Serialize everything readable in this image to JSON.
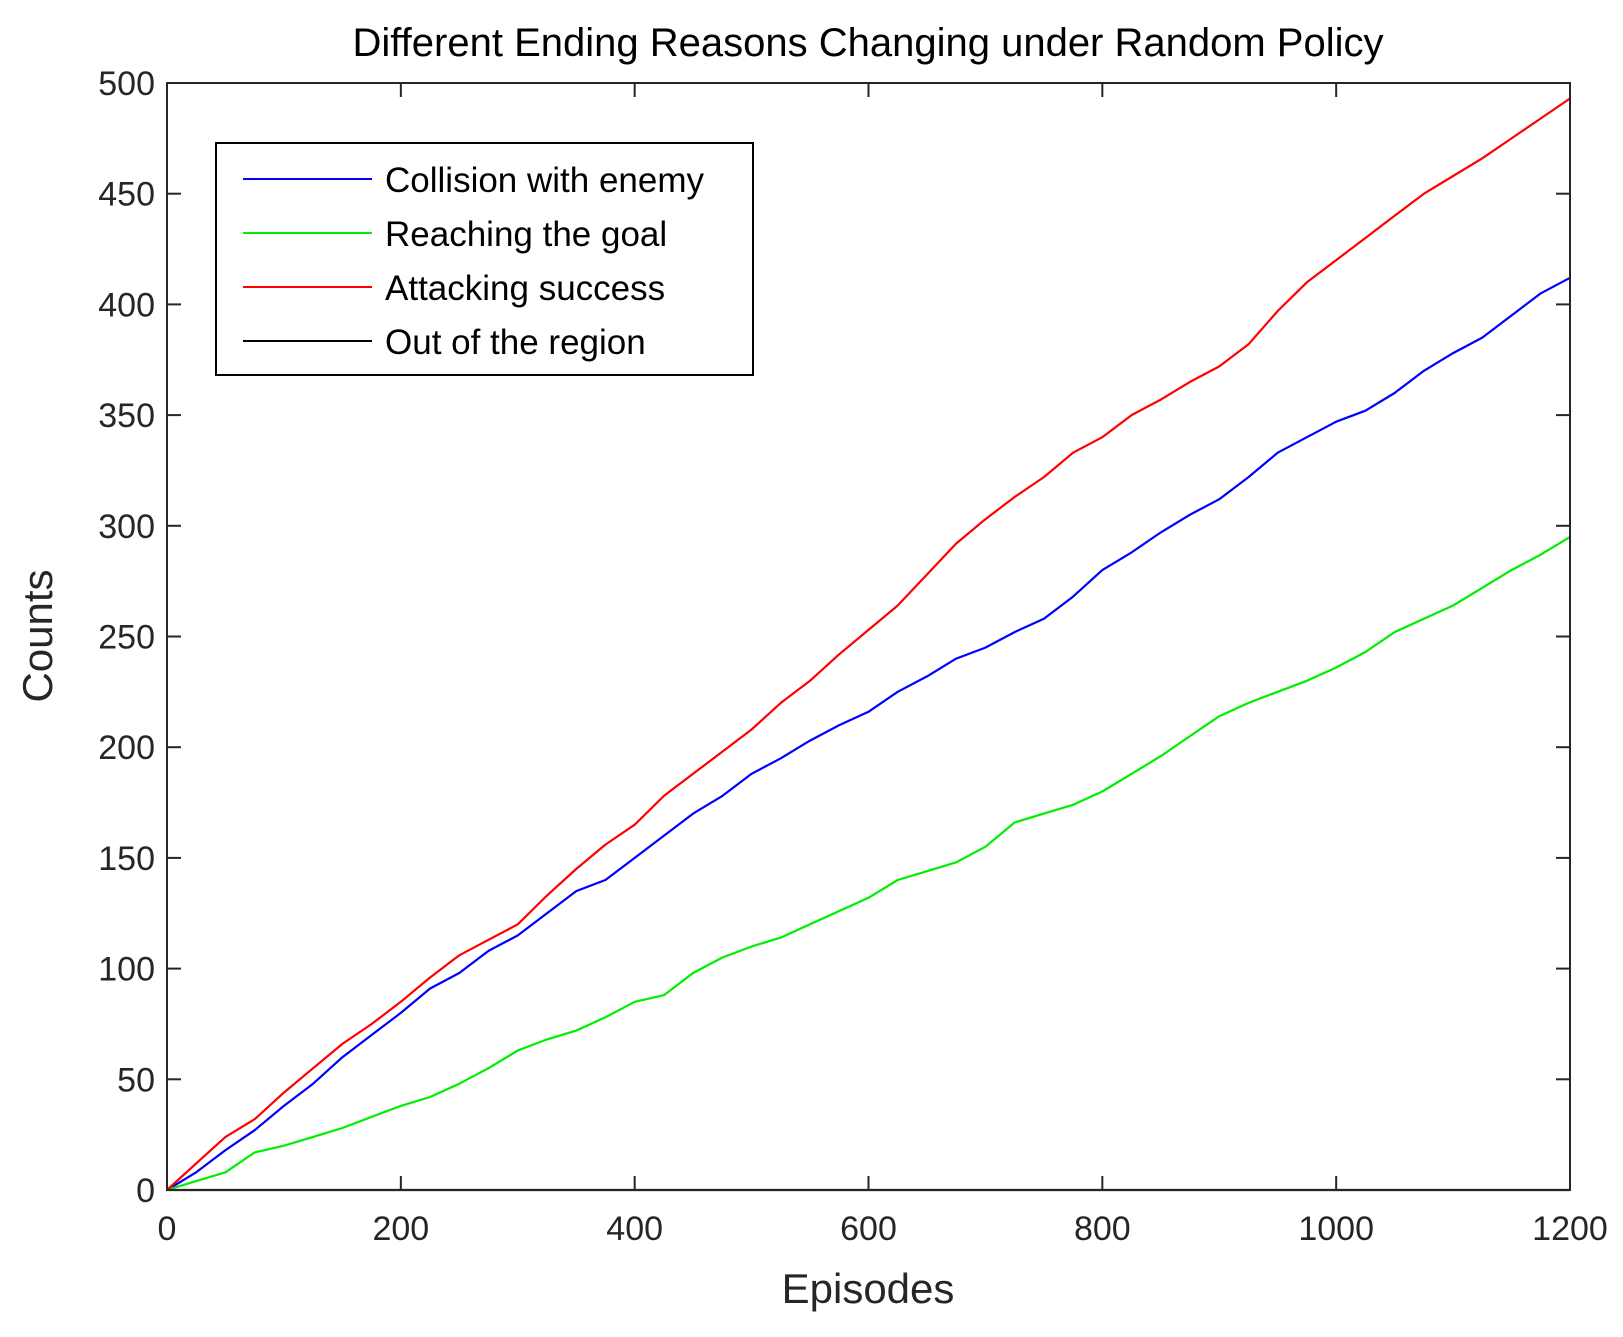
{
  "chart_data": {
    "type": "line",
    "title": "Different Ending Reasons Changing under Random Policy",
    "xlabel": "Episodes",
    "ylabel": "Counts",
    "xlim": [
      0,
      1200
    ],
    "ylim": [
      0,
      500
    ],
    "xticks": [
      0,
      200,
      400,
      600,
      800,
      1000,
      1200
    ],
    "yticks": [
      0,
      50,
      100,
      150,
      200,
      250,
      300,
      350,
      400,
      450,
      500
    ],
    "grid": false,
    "legend_position": "top-left",
    "series": [
      {
        "name": "Collision with enemy",
        "color": "#0000ff",
        "x": [
          0,
          25,
          50,
          75,
          100,
          125,
          150,
          175,
          200,
          225,
          250,
          275,
          300,
          325,
          350,
          375,
          400,
          425,
          450,
          475,
          500,
          525,
          550,
          575,
          600,
          625,
          650,
          675,
          700,
          725,
          750,
          775,
          800,
          825,
          850,
          875,
          900,
          925,
          950,
          975,
          1000,
          1025,
          1050,
          1075,
          1100,
          1125,
          1150,
          1175,
          1200
        ],
        "values": [
          0,
          8,
          18,
          27,
          38,
          48,
          60,
          70,
          80,
          91,
          98,
          108,
          115,
          125,
          135,
          140,
          150,
          160,
          170,
          178,
          188,
          195,
          203,
          210,
          216,
          225,
          232,
          240,
          245,
          252,
          258,
          268,
          280,
          288,
          297,
          305,
          312,
          322,
          333,
          340,
          347,
          352,
          360,
          370,
          378,
          385,
          395,
          405,
          412
        ]
      },
      {
        "name": "Reaching the goal",
        "color": "#00ee00",
        "x": [
          0,
          25,
          50,
          75,
          100,
          125,
          150,
          175,
          200,
          225,
          250,
          275,
          300,
          325,
          350,
          375,
          400,
          425,
          450,
          475,
          500,
          525,
          550,
          575,
          600,
          625,
          650,
          675,
          700,
          725,
          750,
          775,
          800,
          825,
          850,
          875,
          900,
          925,
          950,
          975,
          1000,
          1025,
          1050,
          1075,
          1100,
          1125,
          1150,
          1175,
          1200
        ],
        "values": [
          0,
          4,
          8,
          17,
          20,
          24,
          28,
          33,
          38,
          42,
          48,
          55,
          63,
          68,
          72,
          78,
          85,
          88,
          98,
          105,
          110,
          114,
          120,
          126,
          132,
          140,
          144,
          148,
          155,
          166,
          170,
          174,
          180,
          188,
          196,
          205,
          214,
          220,
          225,
          230,
          236,
          243,
          252,
          258,
          264,
          272,
          280,
          287,
          295
        ]
      },
      {
        "name": "Attacking success",
        "color": "#ff0000",
        "x": [
          0,
          25,
          50,
          75,
          100,
          125,
          150,
          175,
          200,
          225,
          250,
          275,
          300,
          325,
          350,
          375,
          400,
          425,
          450,
          475,
          500,
          525,
          550,
          575,
          600,
          625,
          650,
          675,
          700,
          725,
          750,
          775,
          800,
          825,
          850,
          875,
          900,
          925,
          950,
          975,
          1000,
          1025,
          1050,
          1075,
          1100,
          1125,
          1150,
          1175,
          1200
        ],
        "values": [
          0,
          12,
          24,
          32,
          44,
          55,
          66,
          75,
          85,
          96,
          106,
          113,
          120,
          133,
          145,
          156,
          165,
          178,
          188,
          198,
          208,
          220,
          230,
          242,
          253,
          264,
          278,
          292,
          303,
          313,
          322,
          333,
          340,
          350,
          357,
          365,
          372,
          382,
          397,
          410,
          420,
          430,
          440,
          450,
          458,
          466,
          475,
          484,
          493
        ]
      },
      {
        "name": "Out of the region",
        "color": "#000000",
        "x": [
          0,
          1200
        ],
        "values": [
          0,
          0
        ]
      }
    ]
  }
}
